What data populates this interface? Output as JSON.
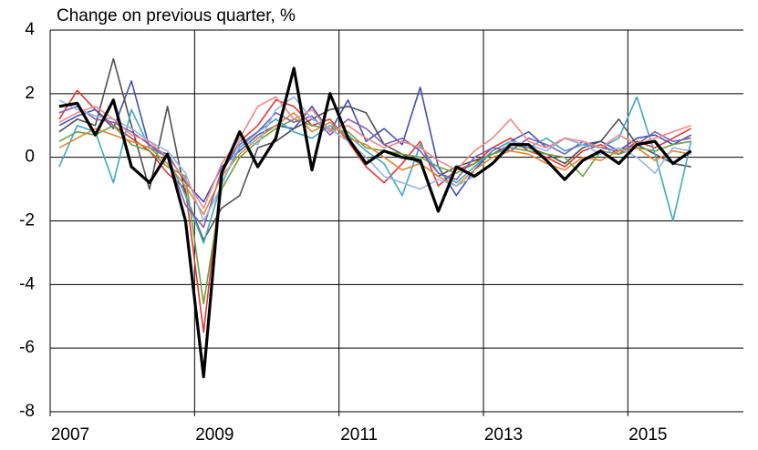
{
  "chart_data": {
    "type": "line",
    "title": "Change on previous quarter, %",
    "x": [
      2007.125,
      2007.375,
      2007.625,
      2007.875,
      2008.125,
      2008.375,
      2008.625,
      2008.875,
      2009.125,
      2009.375,
      2009.625,
      2009.875,
      2010.125,
      2010.375,
      2010.625,
      2010.875,
      2011.125,
      2011.375,
      2011.625,
      2011.875,
      2012.125,
      2012.375,
      2012.625,
      2012.875,
      2013.125,
      2013.375,
      2013.625,
      2013.875,
      2014.125,
      2014.375,
      2014.625,
      2014.875,
      2015.125,
      2015.375,
      2015.625,
      2015.875
    ],
    "xlim": [
      2007,
      2016.6
    ],
    "xticks": [
      2007,
      2009,
      2011,
      2013,
      2015
    ],
    "ylim": [
      -8,
      4
    ],
    "yticks": [
      -8,
      -6,
      -4,
      -2,
      0,
      2,
      4
    ],
    "grid": true,
    "series": [
      {
        "color": "#e03838",
        "values": [
          1.2,
          2.1,
          1.5,
          1.0,
          0.6,
          0.2,
          -0.5,
          -1.0,
          -5.5,
          -0.5,
          0.5,
          1.0,
          1.8,
          1.6,
          1.0,
          1.2,
          0.5,
          -0.3,
          -0.8,
          -0.2,
          0.5,
          -0.9,
          -0.4,
          -0.2,
          0.3,
          0.6,
          0.2,
          0.0,
          -0.3,
          0.2,
          0.4,
          0.1,
          0.5,
          0.3,
          0.6,
          0.9
        ]
      },
      {
        "color": "#4050b0",
        "values": [
          1.0,
          1.3,
          1.5,
          0.9,
          2.4,
          0.3,
          0.1,
          -0.8,
          -1.4,
          -0.3,
          0.2,
          0.7,
          1.0,
          0.9,
          1.6,
          0.8,
          1.8,
          0.5,
          0.9,
          0.4,
          2.2,
          -0.3,
          -1.2,
          -0.4,
          0.2,
          0.5,
          0.8,
          0.3,
          0.6,
          0.4,
          0.5,
          0.2,
          0.6,
          0.7,
          0.4,
          0.7
        ]
      },
      {
        "color": "#505050",
        "values": [
          0.8,
          1.2,
          1.0,
          3.1,
          1.0,
          -1.0,
          1.6,
          -1.2,
          -2.6,
          -1.6,
          -1.2,
          0.3,
          0.5,
          0.9,
          1.2,
          1.5,
          1.6,
          1.4,
          0.4,
          0.1,
          -0.2,
          -0.6,
          -0.3,
          -0.1,
          0.1,
          0.4,
          0.3,
          0.1,
          -0.2,
          0.3,
          0.5,
          1.2,
          0.4,
          0.1,
          -0.2,
          -0.3
        ]
      },
      {
        "color": "#70a040",
        "values": [
          0.5,
          0.8,
          0.7,
          1.0,
          0.4,
          0.2,
          -0.3,
          -0.6,
          -4.6,
          -1.0,
          0.0,
          0.5,
          0.9,
          1.2,
          1.0,
          0.9,
          0.8,
          0.3,
          0.2,
          0.1,
          0.0,
          -0.3,
          -0.5,
          -0.2,
          0.1,
          0.3,
          0.2,
          0.1,
          0.0,
          -0.6,
          0.2,
          0.1,
          0.3,
          0.2,
          0.4,
          0.5
        ]
      },
      {
        "color": "#40a8c0",
        "values": [
          -0.3,
          1.0,
          0.8,
          -0.8,
          1.5,
          0.3,
          0.0,
          -1.2,
          -2.7,
          -0.8,
          0.3,
          0.8,
          1.2,
          0.8,
          0.6,
          1.0,
          0.7,
          0.2,
          -0.2,
          -1.2,
          0.4,
          -0.5,
          -0.8,
          -0.3,
          0.2,
          0.5,
          0.3,
          0.6,
          0.2,
          0.4,
          0.3,
          0.6,
          1.9,
          0.1,
          -2.0,
          0.5
        ]
      },
      {
        "color": "#8060b0",
        "values": [
          1.4,
          1.6,
          1.2,
          1.1,
          0.8,
          0.4,
          0.0,
          -1.5,
          -2.2,
          -0.4,
          0.4,
          0.8,
          1.4,
          1.1,
          1.3,
          0.7,
          1.2,
          0.9,
          0.4,
          0.6,
          0.2,
          -0.5,
          -0.7,
          0.0,
          0.3,
          0.2,
          0.6,
          0.4,
          0.1,
          0.5,
          0.3,
          0.2,
          0.4,
          0.8,
          0.5,
          0.6
        ]
      },
      {
        "color": "#e08838",
        "values": [
          0.3,
          0.6,
          0.9,
          0.7,
          0.5,
          0.3,
          -0.2,
          -0.9,
          -1.8,
          -0.6,
          0.1,
          0.6,
          1.0,
          1.4,
          0.8,
          1.1,
          0.6,
          0.4,
          0.0,
          -0.4,
          -0.2,
          -0.6,
          -0.9,
          -0.4,
          0.0,
          0.2,
          0.1,
          -0.2,
          -0.4,
          0.0,
          -0.1,
          0.2,
          0.3,
          -0.1,
          0.2,
          0.1
        ]
      },
      {
        "color": "#98b4e4",
        "values": [
          1.8,
          1.5,
          1.3,
          1.2,
          0.9,
          0.5,
          0.2,
          -0.5,
          -2.0,
          -0.9,
          0.5,
          0.4,
          1.5,
          1.9,
          1.2,
          0.9,
          0.5,
          0.0,
          -0.6,
          -0.8,
          -1.0,
          -0.7,
          -0.9,
          -0.6,
          -0.2,
          0.5,
          0.4,
          0.2,
          0.6,
          0.4,
          0.1,
          0.3,
          0.0,
          -0.5,
          0.3,
          0.2
        ]
      },
      {
        "color": "#f08888",
        "values": [
          1.1,
          1.4,
          1.6,
          1.2,
          0.7,
          0.5,
          0.0,
          -0.7,
          -1.6,
          -0.2,
          0.6,
          1.6,
          1.9,
          1.2,
          1.5,
          0.8,
          1.0,
          0.6,
          0.3,
          0.5,
          0.3,
          -0.1,
          -0.4,
          0.2,
          0.6,
          1.2,
          0.5,
          0.3,
          0.6,
          0.5,
          0.3,
          0.7,
          0.4,
          0.6,
          0.8,
          1.0
        ]
      },
      {
        "color": "#000000",
        "values": [
          1.6,
          1.7,
          0.7,
          1.8,
          -0.3,
          -0.8,
          0.1,
          -2.0,
          -6.9,
          -0.5,
          0.8,
          -0.3,
          0.6,
          2.8,
          -0.4,
          2.0,
          0.6,
          -0.2,
          0.2,
          0.0,
          -0.1,
          -1.7,
          -0.3,
          -0.6,
          -0.2,
          0.4,
          0.4,
          -0.1,
          -0.7,
          -0.1,
          0.2,
          -0.2,
          0.4,
          0.5,
          -0.2,
          0.2
        ]
      }
    ]
  }
}
